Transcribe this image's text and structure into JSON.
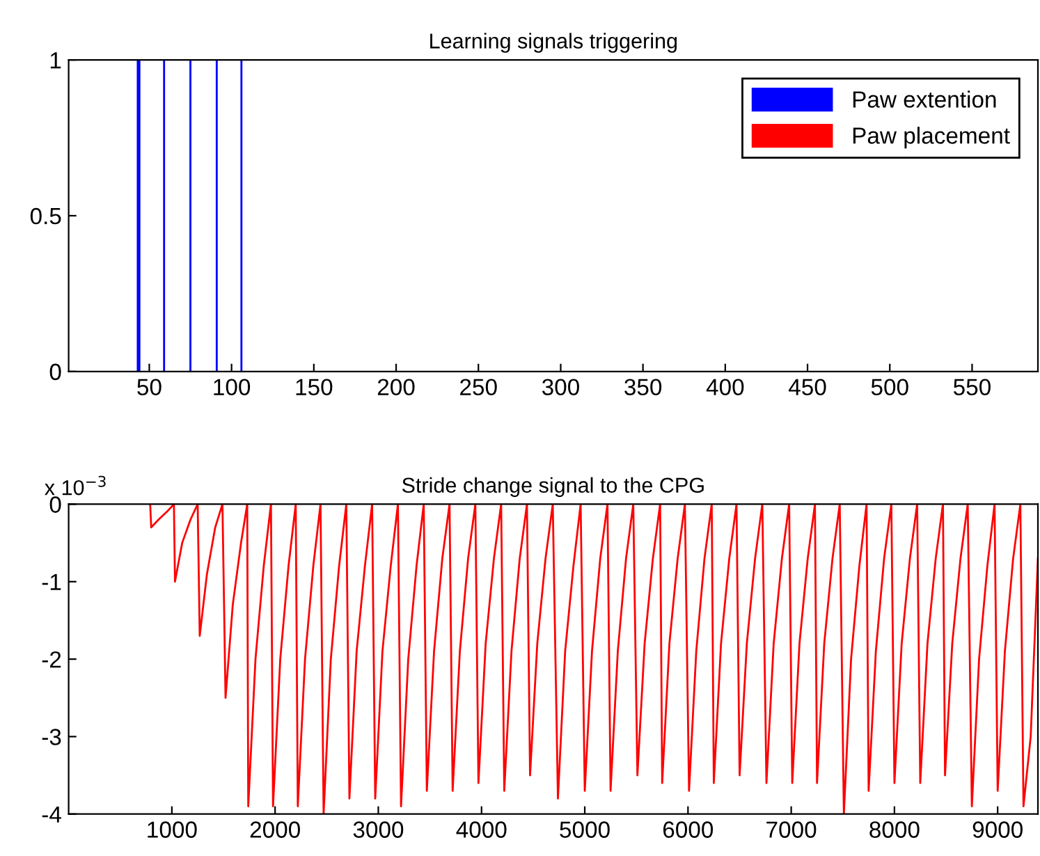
{
  "chart_data": [
    {
      "type": "bar",
      "title": "Learning signals triggering",
      "x": [
        43,
        44,
        59,
        75,
        91,
        106
      ],
      "series": [
        {
          "name": "Paw extention",
          "color": "#0000ff",
          "values": [
            1,
            1,
            1,
            1,
            1,
            1
          ]
        },
        {
          "name": "Paw placement",
          "color": "#ff0000",
          "values": [
            null,
            null,
            null,
            null,
            null,
            null
          ]
        }
      ],
      "xlim": [
        1,
        590
      ],
      "xticks": [
        50,
        100,
        150,
        200,
        250,
        300,
        350,
        400,
        450,
        500,
        550
      ],
      "ylim": [
        0,
        1
      ],
      "yticks": [
        0,
        0.5,
        1
      ],
      "grid": false,
      "legend": "top right"
    },
    {
      "type": "line",
      "title": "Stride change signal to the CPG",
      "annotations": [
        "x 10$^{−3}$"
      ],
      "x": [
        790,
        800,
        870,
        950,
        1020,
        1030,
        1100,
        1180,
        1250,
        1270,
        1340,
        1420,
        1490,
        1520,
        1590,
        1670,
        1730,
        1740,
        1810,
        1890,
        1960,
        1980,
        2050,
        2130,
        2200,
        2220,
        2290,
        2370,
        2440,
        2470,
        2540,
        2620,
        2690,
        2720,
        2790,
        2870,
        2940,
        2970,
        3040,
        3120,
        3190,
        3220,
        3290,
        3370,
        3440,
        3470,
        3540,
        3620,
        3690,
        3720,
        3790,
        3870,
        3940,
        3970,
        4040,
        4120,
        4190,
        4220,
        4290,
        4370,
        4440,
        4470,
        4540,
        4620,
        4690,
        4740,
        4810,
        4890,
        4960,
        5000,
        5070,
        5150,
        5220,
        5250,
        5320,
        5400,
        5470,
        5510,
        5580,
        5660,
        5730,
        5750,
        5820,
        5900,
        5970,
        6010,
        6080,
        6160,
        6230,
        6250,
        6320,
        6400,
        6470,
        6500,
        6570,
        6650,
        6720,
        6760,
        6830,
        6910,
        6980,
        7010,
        7080,
        7160,
        7230,
        7250,
        7320,
        7400,
        7470,
        7510,
        7580,
        7660,
        7730,
        7750,
        7820,
        7900,
        7970,
        8000,
        8070,
        8150,
        8220,
        8250,
        8320,
        8400,
        8470,
        8490,
        8560,
        8640,
        8710,
        8750,
        8820,
        8900,
        8970,
        9000,
        9070,
        9150,
        9220,
        9250,
        9320,
        9390
      ],
      "series": [
        {
          "color": "#ff0000",
          "values": [
            0,
            -0.3,
            -0.2,
            -0.1,
            0,
            -1.0,
            -0.5,
            -0.2,
            0,
            -1.7,
            -0.9,
            -0.3,
            0,
            -2.5,
            -1.3,
            -0.5,
            0,
            -3.9,
            -2.0,
            -0.8,
            0,
            -3.9,
            -2.0,
            -0.8,
            0,
            -3.9,
            -2.0,
            -0.8,
            0,
            -4.0,
            -2.0,
            -0.8,
            0,
            -3.8,
            -1.9,
            -0.8,
            0,
            -3.8,
            -1.9,
            -0.8,
            0,
            -3.9,
            -2.0,
            -0.8,
            0,
            -3.7,
            -1.9,
            -0.7,
            0,
            -3.7,
            -1.9,
            -0.7,
            0,
            -3.6,
            -1.8,
            -0.7,
            0,
            -3.7,
            -1.9,
            -0.7,
            0,
            -3.5,
            -1.8,
            -0.7,
            0,
            -3.8,
            -1.9,
            -0.8,
            0,
            -3.7,
            -1.9,
            -0.7,
            0,
            -3.7,
            -1.9,
            -0.7,
            0,
            -3.5,
            -1.8,
            -0.7,
            0,
            -3.6,
            -1.8,
            -0.7,
            0,
            -3.7,
            -1.9,
            -0.7,
            0,
            -3.6,
            -1.8,
            -0.7,
            0,
            -3.5,
            -1.8,
            -0.7,
            0,
            -3.6,
            -1.8,
            -0.7,
            0,
            -3.6,
            -1.8,
            -0.7,
            0,
            -3.6,
            -1.8,
            -0.7,
            0,
            -4.0,
            -2.0,
            -0.8,
            0,
            -3.7,
            -1.9,
            -0.7,
            0,
            -3.6,
            -1.8,
            -0.7,
            0,
            -3.6,
            -1.8,
            -0.7,
            0,
            -3.5,
            -1.8,
            -0.7,
            0,
            -3.9,
            -2.0,
            -0.8,
            0,
            -3.7,
            -1.9,
            -0.7,
            0,
            -3.9,
            -3.0,
            -0.7
          ]
        }
      ],
      "xlim": [
        0,
        9390
      ],
      "xticks": [
        1000,
        2000,
        3000,
        4000,
        5000,
        6000,
        7000,
        8000,
        9000
      ],
      "ylim": [
        -4,
        0
      ],
      "yticks": [
        -4,
        -3,
        -2,
        -1,
        0
      ],
      "grid": false
    }
  ]
}
